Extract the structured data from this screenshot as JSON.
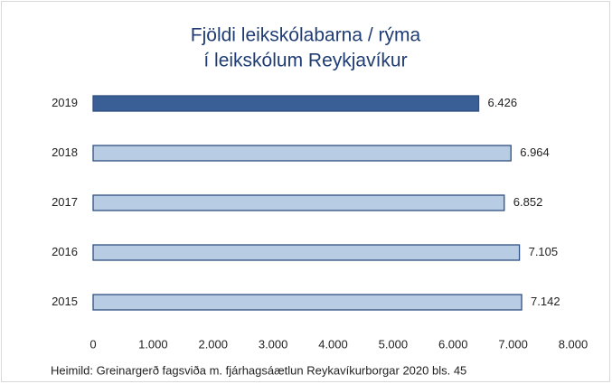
{
  "chart_data": {
    "type": "barh",
    "title": [
      "Fjöldi leikskólabarna / rýma",
      "í leikskólum Reykjavíkur"
    ],
    "categories": [
      "2019",
      "2018",
      "2017",
      "2016",
      "2015"
    ],
    "values": [
      6426,
      6964,
      6852,
      7105,
      7142
    ],
    "value_labels": [
      "6.426",
      "6.964",
      "6.852",
      "7.105",
      "7.142"
    ],
    "colors": [
      "#3a5f96",
      "#b8cce4",
      "#b8cce4",
      "#b8cce4",
      "#b8cce4"
    ],
    "edge_color": "#2f4f80",
    "xlim": [
      0,
      8000
    ],
    "xticks": [
      0,
      {
        "value": 1000,
        "label": "1.000"
      },
      {
        "value": 2000,
        "label": "2.000"
      },
      {
        "value": 3000,
        "label": "3.000"
      },
      {
        "value": 4000,
        "label": "4.000"
      },
      {
        "value": 5000,
        "label": "5.000"
      },
      {
        "value": 6000,
        "label": "6.000"
      },
      {
        "value": 7000,
        "label": "7.000"
      },
      {
        "value": 8000,
        "label": "8.000"
      }
    ],
    "grid": false,
    "source": "Heimild: Greinargerð fagsviða m. fjárhagsáætlun Reykavíkurborgar 2020 bls. 45"
  }
}
